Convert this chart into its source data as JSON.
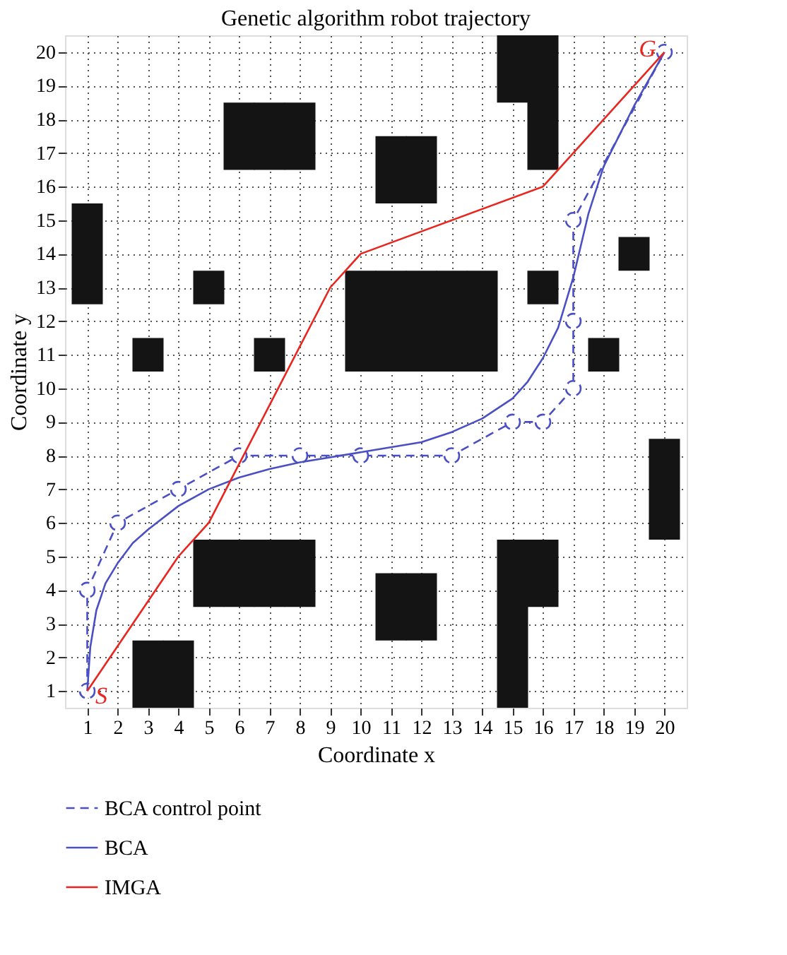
{
  "chart_data": {
    "type": "line",
    "title": "Genetic algorithm robot trajectory",
    "xlabel": "Coordinate x",
    "ylabel": "Coordinate y",
    "xlim": [
      0.5,
      20.5
    ],
    "ylim": [
      0.5,
      20.5
    ],
    "xticks": [
      1,
      2,
      3,
      4,
      5,
      6,
      7,
      8,
      9,
      10,
      11,
      12,
      13,
      14,
      15,
      16,
      17,
      18,
      19,
      20
    ],
    "yticks": [
      1,
      2,
      3,
      4,
      5,
      6,
      7,
      8,
      9,
      10,
      11,
      12,
      13,
      14,
      15,
      16,
      17,
      18,
      19,
      20
    ],
    "grid": true,
    "legend": "bottom",
    "annotations": [
      {
        "text": "S",
        "x": 1,
        "y": 1
      },
      {
        "text": "G",
        "x": 20,
        "y": 20
      }
    ],
    "series": [
      {
        "type": "bar",
        "color": "#141414",
        "x": [
          1,
          3,
          4,
          5,
          6,
          7,
          8,
          10,
          11,
          12,
          13,
          14,
          15,
          16,
          18,
          19,
          20
        ],
        "base": [
          12.5,
          0.5,
          0.5,
          3.5,
          3.5,
          3.5,
          3.5,
          10.5,
          2.5,
          2.5,
          10.5,
          10.5,
          0.5,
          3.5,
          10.5,
          13.5,
          5.5
        ],
        "values": [
          3,
          2,
          2,
          2,
          2,
          2,
          2,
          3,
          2,
          2,
          3,
          3,
          5,
          2,
          1,
          1,
          3
        ]
      },
      {
        "type": "bar",
        "color": "#141414",
        "x": [
          3,
          5,
          6,
          7,
          8,
          11,
          12,
          15,
          16
        ],
        "base": [
          10.5,
          12.5,
          16.5,
          10.5,
          16.5,
          10.5,
          10.5,
          18.5,
          12.5
        ],
        "values": [
          1,
          1,
          2,
          1,
          2,
          3,
          3,
          2,
          1
        ]
      },
      {
        "type": "bar",
        "color": "#141414",
        "x": [
          7,
          11,
          12,
          16
        ],
        "base": [
          16.5,
          15.5,
          15.5,
          16.5
        ],
        "values": [
          2,
          2,
          2,
          4
        ]
      },
      {
        "name": "BCA control point",
        "color": "#4a4fc4",
        "line_style": "dashed",
        "marker": "circle",
        "x": [
          1,
          1,
          2,
          4,
          6,
          8,
          10,
          13,
          15,
          16,
          17,
          17,
          17,
          20
        ],
        "values": [
          1,
          4,
          6,
          7,
          8,
          8,
          8,
          8,
          9,
          9,
          10,
          12,
          15,
          20
        ]
      },
      {
        "name": "BCA",
        "color": "#4a4fc4",
        "line_style": "solid",
        "x": [
          1,
          1.1,
          1.3,
          1.6,
          2,
          2.5,
          3,
          4,
          5,
          6,
          7,
          8,
          10,
          12,
          13,
          14,
          15,
          15.5,
          16,
          16.5,
          17,
          17.5,
          18,
          19,
          20
        ],
        "values": [
          1,
          2.3,
          3.4,
          4.2,
          4.8,
          5.4,
          5.8,
          6.5,
          7,
          7.35,
          7.6,
          7.8,
          8.1,
          8.4,
          8.7,
          9.1,
          9.7,
          10.2,
          10.9,
          11.8,
          13.3,
          15.2,
          16.6,
          18.4,
          20
        ]
      },
      {
        "name": "IMGA",
        "color": "#e8251f",
        "line_style": "solid",
        "x": [
          1,
          4,
          5,
          9,
          10,
          16,
          20
        ],
        "values": [
          1,
          5,
          6,
          13,
          14,
          16,
          20
        ]
      }
    ]
  }
}
